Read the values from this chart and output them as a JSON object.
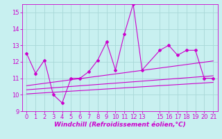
{
  "xlabel": "Windchill (Refroidissement éolien,°C)",
  "background_color": "#c8f0f0",
  "grid_color": "#a8d8d8",
  "line_color": "#cc00cc",
  "x_data": [
    0,
    1,
    2,
    3,
    4,
    5,
    6,
    7,
    8,
    9,
    10,
    11,
    12,
    13,
    15,
    16,
    17,
    18,
    19,
    20,
    21
  ],
  "y_jagged": [
    12.5,
    11.3,
    12.1,
    10.0,
    9.5,
    11.0,
    11.0,
    11.4,
    12.1,
    13.2,
    11.5,
    13.7,
    15.5,
    11.5,
    12.7,
    13.0,
    12.4,
    12.7,
    12.7,
    11.0,
    11.0
  ],
  "trend1": [
    10.55,
    12.05
  ],
  "trend2": [
    10.3,
    11.15
  ],
  "trend3": [
    10.05,
    10.75
  ],
  "ylim": [
    9,
    15.5
  ],
  "xlim": [
    -0.5,
    21.5
  ],
  "yticks": [
    9,
    10,
    11,
    12,
    13,
    14,
    15
  ],
  "xticks": [
    0,
    1,
    2,
    3,
    4,
    5,
    6,
    7,
    8,
    9,
    10,
    11,
    12,
    13,
    15,
    16,
    17,
    18,
    19,
    20,
    21
  ],
  "tick_fontsize": 6,
  "xlabel_fontsize": 6.5
}
